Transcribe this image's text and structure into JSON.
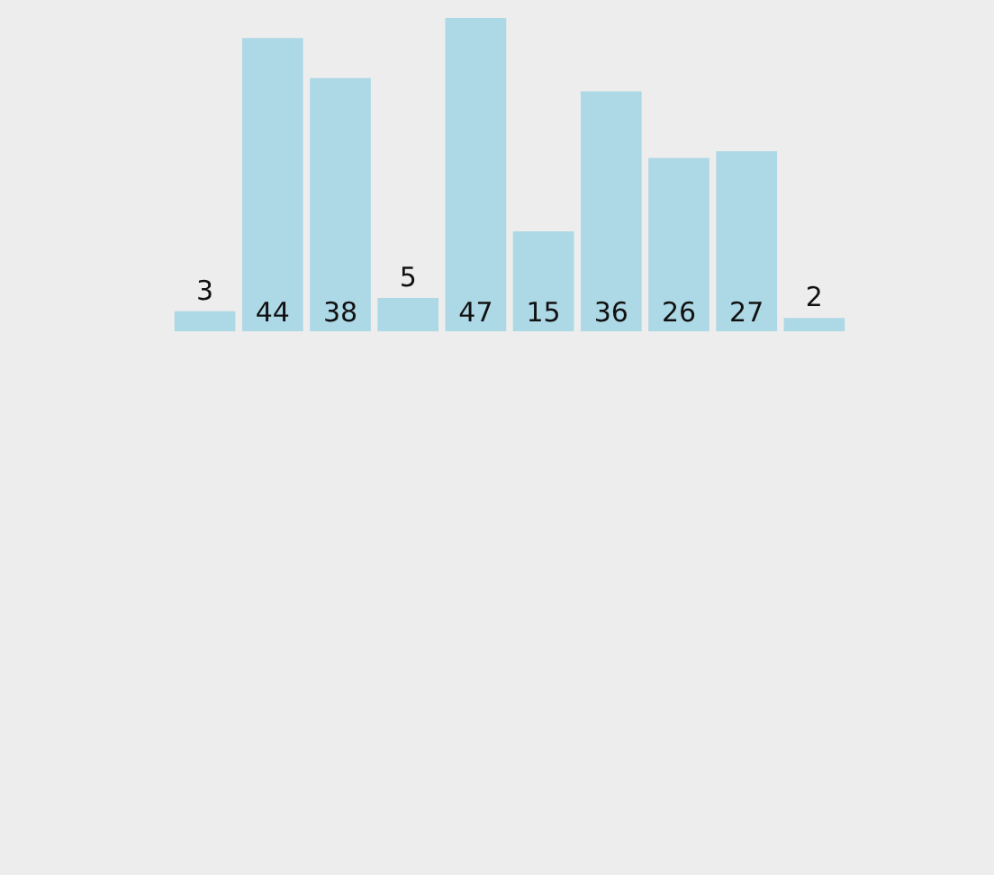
{
  "chart_data": {
    "type": "bar",
    "categories": [
      null,
      null,
      null,
      null,
      null,
      null,
      null,
      null,
      null,
      null
    ],
    "values": [
      3,
      44,
      38,
      5,
      47,
      15,
      36,
      26,
      27,
      2
    ],
    "color": "#add8e6",
    "data_labels": true,
    "grid": false,
    "legend": false,
    "tick_labels": false
  }
}
